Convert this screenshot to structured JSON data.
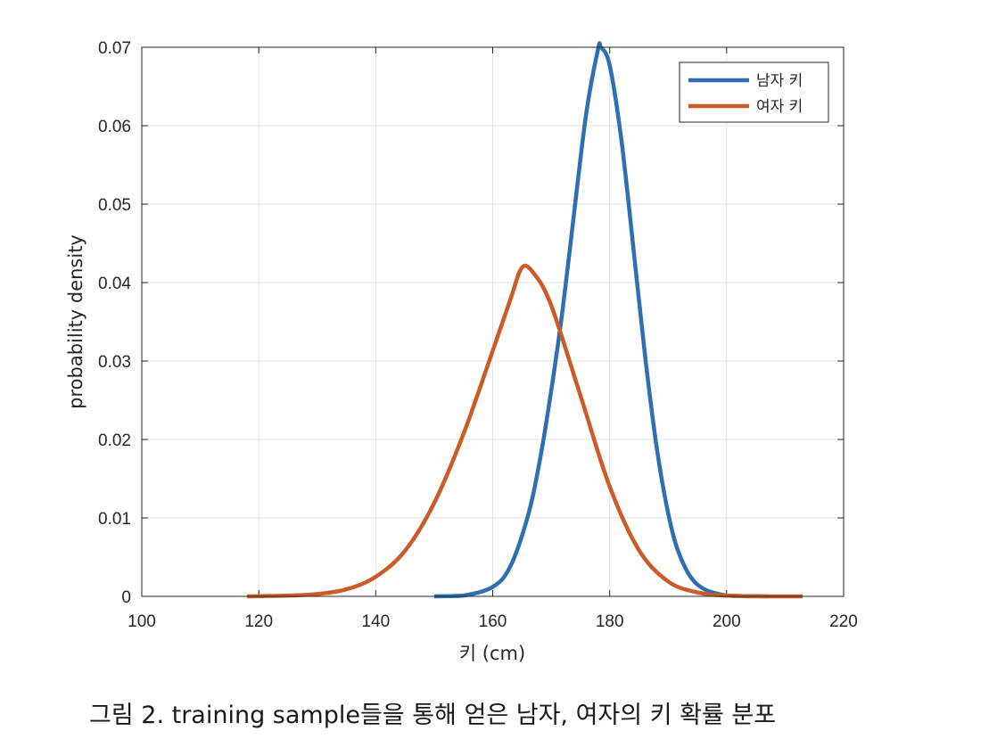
{
  "chart_data": {
    "type": "line",
    "xlabel": "키 (cm)",
    "ylabel": "probability density",
    "xlim": [
      100,
      220
    ],
    "ylim": [
      0,
      0.07
    ],
    "x_ticks": [
      "100",
      "120",
      "140",
      "160",
      "180",
      "200",
      "220"
    ],
    "y_ticks": [
      "0",
      "0.01",
      "0.02",
      "0.03",
      "0.04",
      "0.05",
      "0.06",
      "0.07"
    ],
    "grid": true,
    "legend_position": "top-right",
    "series": [
      {
        "name": "남자 키",
        "color": "#2e6fb2",
        "x": [
          150,
          155,
          160,
          163,
          166,
          168,
          170,
          172,
          174,
          176,
          178,
          178.5,
          180,
          182,
          184,
          186,
          188,
          190,
          192,
          195,
          200,
          207
        ],
        "y": [
          0.0,
          0.0001,
          0.0012,
          0.0038,
          0.0102,
          0.0171,
          0.0262,
          0.0368,
          0.0494,
          0.0616,
          0.0697,
          0.07,
          0.0677,
          0.0582,
          0.0448,
          0.031,
          0.0192,
          0.0106,
          0.0052,
          0.0015,
          0.0001,
          0.0
        ]
      },
      {
        "name": "여자 키",
        "color": "#cc5b2a",
        "x": [
          118,
          125,
          130,
          135,
          140,
          145,
          150,
          155,
          160,
          163,
          165,
          167,
          170,
          175,
          180,
          185,
          190,
          195,
          200,
          207,
          213
        ],
        "y": [
          0.0,
          0.0001,
          0.0003,
          0.0009,
          0.0025,
          0.0058,
          0.0119,
          0.0207,
          0.0313,
          0.0378,
          0.0419,
          0.0412,
          0.0371,
          0.0256,
          0.014,
          0.0059,
          0.0019,
          0.0005,
          0.0001,
          0.0,
          0.0
        ]
      }
    ]
  },
  "caption": "그림 2. training sample들을 통해 얻은 남자, 여자의 키 확률 분포"
}
